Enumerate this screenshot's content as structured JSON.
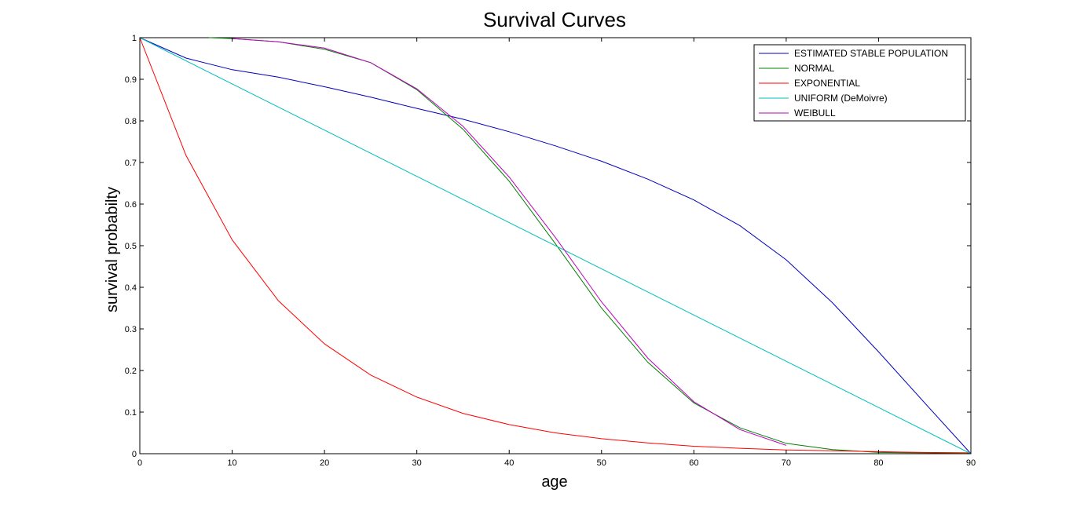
{
  "chart_data": {
    "type": "line",
    "title": "Survival Curves",
    "xlabel": "age",
    "ylabel": "survival probabilty",
    "xlim": [
      0,
      90
    ],
    "ylim": [
      0,
      1
    ],
    "xticks": [
      0,
      10,
      20,
      30,
      40,
      50,
      60,
      70,
      80,
      90
    ],
    "yticks": [
      0,
      0.1,
      0.2,
      0.3,
      0.4,
      0.5,
      0.6,
      0.7,
      0.8,
      0.9,
      1
    ],
    "ytick_labels": [
      "0",
      "0.1",
      "0.2",
      "0.3",
      "0.4",
      "0.5",
      "0.6",
      "0.7",
      "0.8",
      "0.9",
      "1"
    ],
    "grid": false,
    "legend_position": "top-right",
    "series": [
      {
        "name": "ESTIMATED STABLE POPULATION",
        "color": "#0000bf",
        "x": [
          0,
          5,
          10,
          15,
          20,
          25,
          30,
          35,
          40,
          45,
          50,
          55,
          60,
          65,
          70,
          75,
          80,
          85,
          90
        ],
        "y": [
          1.0,
          0.951,
          0.923,
          0.905,
          0.882,
          0.857,
          0.83,
          0.804,
          0.774,
          0.74,
          0.703,
          0.66,
          0.61,
          0.548,
          0.466,
          0.363,
          0.245,
          0.122,
          0.0
        ]
      },
      {
        "name": "NORMAL",
        "color": "#008000",
        "x": [
          7.5,
          10,
          15,
          20,
          25,
          30,
          35,
          40,
          45,
          50,
          55,
          60,
          65,
          70,
          75,
          80,
          85,
          90
        ],
        "y": [
          1.0,
          0.998,
          0.99,
          0.972,
          0.94,
          0.875,
          0.78,
          0.655,
          0.505,
          0.35,
          0.22,
          0.122,
          0.062,
          0.025,
          0.01,
          0.003,
          0.002,
          0.001
        ]
      },
      {
        "name": "EXPONENTIAL",
        "color": "#ff0000",
        "x": [
          0,
          5,
          10,
          15,
          20,
          25,
          30,
          35,
          40,
          45,
          50,
          55,
          60,
          65,
          70,
          75,
          80,
          85,
          90
        ],
        "y": [
          1.0,
          0.717,
          0.514,
          0.368,
          0.264,
          0.189,
          0.136,
          0.097,
          0.07,
          0.05,
          0.036,
          0.026,
          0.018,
          0.013,
          0.009,
          0.007,
          0.005,
          0.003,
          0.002
        ]
      },
      {
        "name": "UNIFORM (DeMoivre)",
        "color": "#00bfbf",
        "x": [
          0,
          90
        ],
        "y": [
          1.0,
          0.0
        ]
      },
      {
        "name": "WEIBULL",
        "color": "#bf00bf",
        "x": [
          10,
          15,
          20,
          25,
          30,
          35,
          40,
          45,
          50,
          55,
          60,
          65,
          70
        ],
        "y": [
          0.998,
          0.99,
          0.975,
          0.94,
          0.877,
          0.787,
          0.665,
          0.52,
          0.365,
          0.23,
          0.125,
          0.058,
          0.02
        ]
      }
    ]
  }
}
